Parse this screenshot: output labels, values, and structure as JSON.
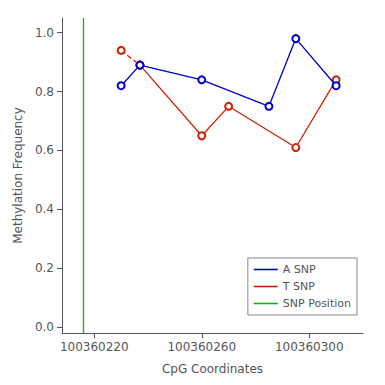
{
  "chart_data": {
    "type": "line",
    "xlabel": "CpG Coordinates",
    "ylabel": "Methylation Frequency",
    "series": [
      {
        "name": "A SNP",
        "color": "#0000cc",
        "marker": "open-circle",
        "line_style": "solid",
        "x": [
          100360230,
          100360237,
          100360260,
          100360285,
          100360295,
          100360310
        ],
        "values": [
          0.82,
          0.89,
          0.84,
          0.75,
          0.98,
          0.82
        ]
      },
      {
        "name": "T SNP",
        "color": "#cc2200",
        "marker": "open-circle",
        "line_style": "first-segment-dashed",
        "x": [
          100360230,
          100360237,
          100360260,
          100360270,
          100360295,
          100360310
        ],
        "values": [
          0.94,
          0.89,
          0.65,
          0.75,
          0.61,
          0.84
        ]
      },
      {
        "name": "SNP Position",
        "color": "#00bb00",
        "type": "vline",
        "line_style": "solid",
        "x": [
          100360216
        ]
      }
    ],
    "xlim": [
      100360208,
      100360320
    ],
    "xticks": [
      100360220,
      100360260,
      100360300
    ],
    "ylim": [
      -0.02,
      1.05
    ],
    "yticks": [
      {
        "value": 0.0,
        "label": "0.0"
      },
      0.2,
      0.4,
      0.6,
      0.8,
      {
        "value": 1.0,
        "label": "1.0"
      }
    ],
    "grid": false,
    "legend": "lower right"
  }
}
